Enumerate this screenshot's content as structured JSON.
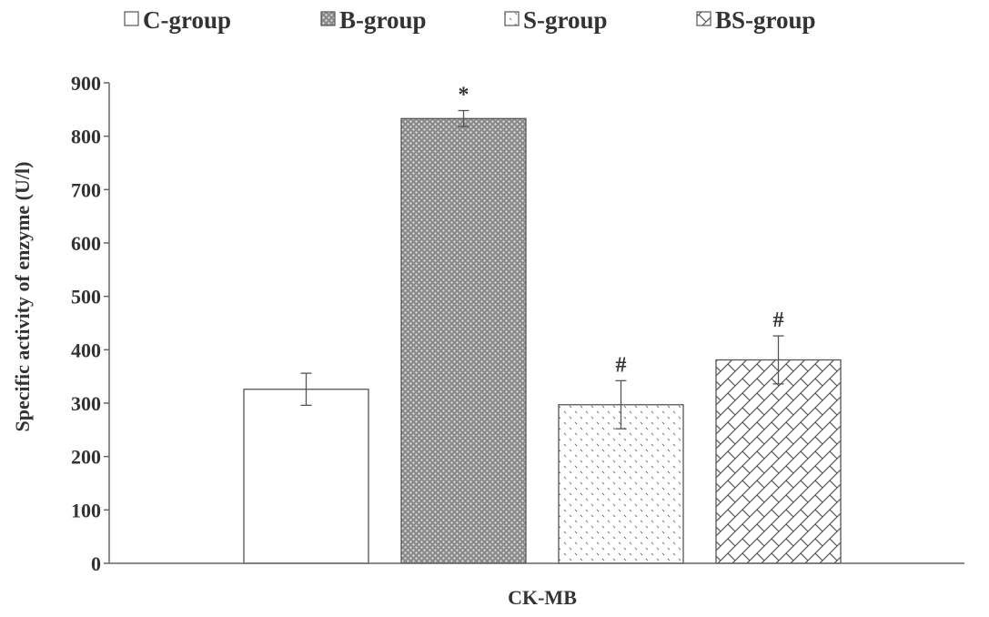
{
  "chart_data": {
    "type": "bar",
    "title": "",
    "xlabel": "CK-MB",
    "ylabel": "Specific activity of enzyme (U/l)",
    "ylim": [
      0,
      900
    ],
    "yticks": [
      "0",
      "100",
      "200",
      "300",
      "400",
      "500",
      "600",
      "700",
      "800",
      "900"
    ],
    "legend_position": "top",
    "grid": false,
    "series": [
      {
        "name": "C-group",
        "value": 326,
        "error": 30,
        "annotation": "",
        "pattern": "blank"
      },
      {
        "name": "B-group",
        "value": 833,
        "error": 15,
        "annotation": "*",
        "pattern": "dots"
      },
      {
        "name": "S-group",
        "value": 297,
        "error": 45,
        "annotation": "#",
        "pattern": "sparse-dots"
      },
      {
        "name": "BS-group",
        "value": 381,
        "error": 45,
        "annotation": "#",
        "pattern": "crosshatch"
      }
    ]
  }
}
